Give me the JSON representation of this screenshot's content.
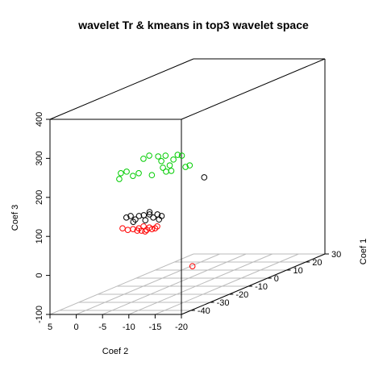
{
  "chart_data": {
    "type": "scatter3d",
    "title": "wavelet Tr & kmeans in top3 wavelet space",
    "xlabel": "Coef 2",
    "ylabel": "Coef 1",
    "zlabel": "Coef 3",
    "xlim": [
      5,
      -20
    ],
    "xticks": [
      5,
      0,
      -5,
      -10,
      -15,
      -20
    ],
    "ylim": [
      -45,
      30
    ],
    "yticks": [
      -40,
      -30,
      -20,
      -10,
      0,
      10,
      20,
      30
    ],
    "zlim": [
      -100,
      400
    ],
    "zticks": [
      -100,
      0,
      100,
      200,
      300,
      400
    ],
    "grid": true,
    "series": [
      {
        "color": "#00cc00",
        "x": [
          8.2,
          7.9,
          6.8,
          5.6,
          4.5,
          3.6,
          2.5,
          2.0,
          0.8,
          0.2,
          -0.6,
          -1.4,
          -2.1,
          -2.9,
          -3.7,
          -1.7,
          -4.4,
          -5.2,
          -0.1,
          -0.7
        ],
        "y": [
          0,
          0,
          0,
          0,
          0,
          0,
          0,
          0,
          0,
          0,
          0,
          0,
          0,
          0,
          0,
          0,
          0,
          0,
          0,
          0
        ],
        "z": [
          154,
          169,
          173,
          162,
          169,
          206,
          214,
          164,
          212,
          200,
          214,
          189,
          204,
          216,
          214,
          175,
          185,
          189,
          183,
          173
        ]
      },
      {
        "color": "#000000",
        "x": [
          3.2,
          2.4,
          1.5,
          0.8,
          -0.1,
          -1.2,
          -1.9,
          -2.7,
          -3.5,
          1.9,
          -0.4,
          -3.0,
          -1.2,
          -11.6
        ],
        "y": [
          -10,
          -10,
          -10,
          -10,
          -10,
          -10,
          -10,
          -10,
          -10,
          -10,
          -10,
          -10,
          -10,
          -10
        ],
        "z": [
          76,
          80,
          71,
          80,
          82,
          84,
          76,
          84,
          80,
          65,
          69,
          71,
          90,
          179
        ]
      },
      {
        "color": "#ff0000",
        "x": [
          0.3,
          -0.7,
          -1.7,
          -2.8,
          -3.3,
          -3.7,
          -4.3,
          -4.8,
          -5.3,
          -5.9,
          -4.0,
          -2.5,
          -6.3,
          -13.0
        ],
        "y": [
          -20,
          -20,
          -20,
          -20,
          -20,
          -20,
          -20,
          -20,
          -20,
          -20,
          -20,
          -20,
          -20,
          -20
        ],
        "z": [
          69,
          65,
          67,
          69,
          63,
          74,
          65,
          71,
          67,
          69,
          61,
          63,
          74,
          -28
        ]
      }
    ]
  }
}
